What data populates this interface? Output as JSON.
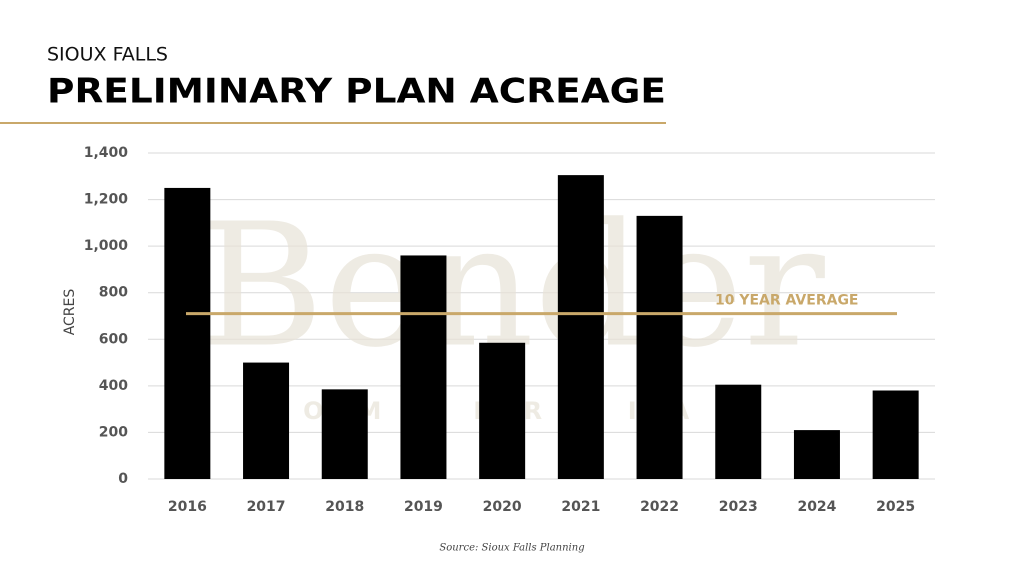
{
  "chart_data": {
    "type": "bar",
    "subtitle": "SIOUX FALLS",
    "title": "PRELIMINARY PLAN ACREAGE",
    "y_label": "ACRES",
    "source": "Source: Sioux Falls Planning",
    "categories": [
      "2016",
      "2017",
      "2018",
      "2019",
      "2020",
      "2021",
      "2022",
      "2023",
      "2024",
      "2025"
    ],
    "values": [
      1250,
      500,
      385,
      960,
      585,
      1305,
      1130,
      405,
      210,
      380
    ],
    "color": "#000000",
    "ylim": [
      0,
      1400
    ],
    "yticks": [
      0,
      200,
      400,
      600,
      800,
      {
        "value": 1000,
        "label": "1,000"
      },
      {
        "value": 1200,
        "label": "1,200"
      },
      {
        "value": 1400,
        "label": "1,400"
      }
    ],
    "grid": true,
    "average": {
      "label": "10 YEAR AVERAGE",
      "value": 710,
      "color": "#c9a86a"
    }
  },
  "watermark": {
    "name": "Bender",
    "tagline": "COMMERCIAL"
  }
}
